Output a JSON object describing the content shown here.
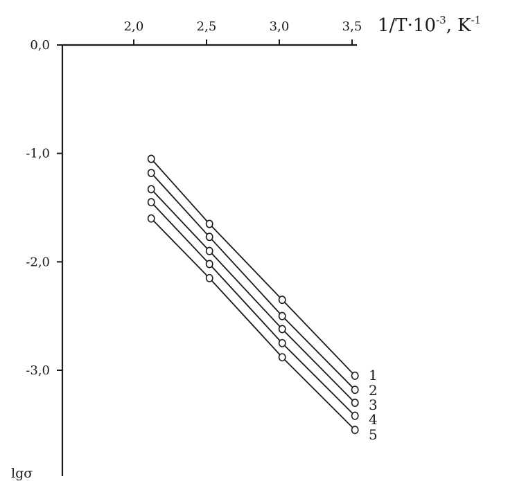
{
  "chart_data": {
    "type": "line",
    "xlabel_main": "1/T·10",
    "xlabel_exp": "-3",
    "xlabel_unit": ", K",
    "xlabel_unit_exp": "-1",
    "ylabel": "lgσ",
    "x_ticks": [
      "2,0",
      "2,5",
      "3,0",
      "3,5"
    ],
    "x_tick_values": [
      2.0,
      2.5,
      3.0,
      3.5
    ],
    "y_ticks": [
      "0,0",
      "-1,0",
      "-2,0",
      "-3,0"
    ],
    "y_tick_values": [
      0.0,
      -1.0,
      -2.0,
      -3.0
    ],
    "xlim": [
      1.55,
      3.5
    ],
    "ylim": [
      -4.0,
      0.0
    ],
    "grid": false,
    "x": [
      2.12,
      2.52,
      3.02,
      3.52
    ],
    "series": [
      {
        "name": "1",
        "values": [
          -1.05,
          -1.65,
          -2.35,
          -3.05
        ]
      },
      {
        "name": "2",
        "values": [
          -1.18,
          -1.77,
          -2.5,
          -3.18
        ]
      },
      {
        "name": "3",
        "values": [
          -1.33,
          -1.9,
          -2.62,
          -3.3
        ]
      },
      {
        "name": "4",
        "values": [
          -1.45,
          -2.02,
          -2.75,
          -3.42
        ]
      },
      {
        "name": "5",
        "values": [
          -1.6,
          -2.15,
          -2.88,
          -3.55
        ]
      }
    ],
    "marker": "open-circle",
    "colors": {
      "ink": "#1a1a1a",
      "background": "#ffffff"
    }
  }
}
